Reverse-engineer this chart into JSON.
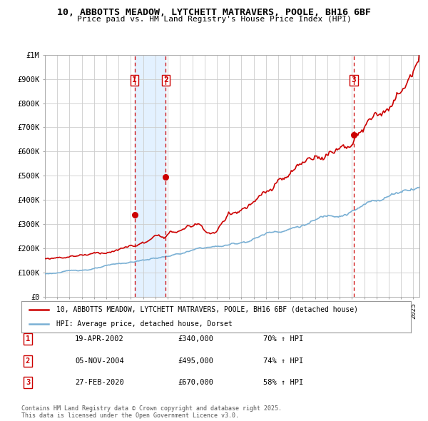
{
  "title": "10, ABBOTTS MEADOW, LYTCHETT MATRAVERS, POOLE, BH16 6BF",
  "subtitle": "Price paid vs. HM Land Registry's House Price Index (HPI)",
  "legend_line1": "10, ABBOTTS MEADOW, LYTCHETT MATRAVERS, POOLE, BH16 6BF (detached house)",
  "legend_line2": "HPI: Average price, detached house, Dorset",
  "sale_color": "#cc0000",
  "hpi_color": "#7ab0d4",
  "vline_color": "#cc0000",
  "vshade_color": "#ddeeff",
  "grid_color": "#cccccc",
  "bg_color": "#ffffff",
  "transactions": [
    {
      "num": 1,
      "date": "19-APR-2002",
      "price": 340000,
      "pct": "70%",
      "year": 2002.3
    },
    {
      "num": 2,
      "date": "05-NOV-2004",
      "price": 495000,
      "pct": "74%",
      "year": 2004.84
    },
    {
      "num": 3,
      "date": "27-FEB-2020",
      "price": 670000,
      "pct": "58%",
      "year": 2020.15
    }
  ],
  "footer": "Contains HM Land Registry data © Crown copyright and database right 2025.\nThis data is licensed under the Open Government Licence v3.0.",
  "ylim": [
    0,
    1000000
  ],
  "xlim_start": 1995,
  "xlim_end": 2025.5
}
